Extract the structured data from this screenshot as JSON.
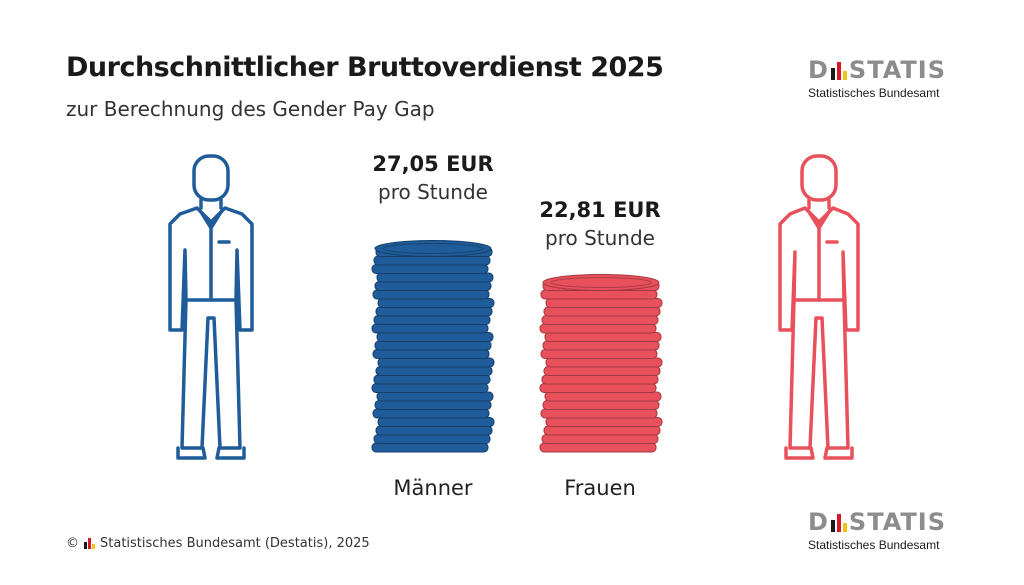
{
  "header": {
    "title": "Durchschnittlicher Bruttoverdienst 2025",
    "subtitle": "zur Berechnung des Gender Pay Gap"
  },
  "logo": {
    "word_left": "D",
    "word_right": "STATIS",
    "tagline": "Statistisches Bundesamt"
  },
  "footer": {
    "copyright": "©",
    "source": "Statistisches Bundesamt (Destatis), 2025"
  },
  "colors": {
    "men": "#1f5c99",
    "women": "#e8505b",
    "logo_grey": "#8c8c8c",
    "bar_black": "#1a1a1a",
    "bar_red": "#d7182a",
    "bar_gold": "#f0c419"
  },
  "chart_data": {
    "type": "bar",
    "title": "Durchschnittlicher Bruttoverdienst 2025",
    "subtitle": "zur Berechnung des Gender Pay Gap",
    "categories": [
      "Männer",
      "Frauen"
    ],
    "values": [
      27.05,
      22.81
    ],
    "value_labels": [
      "27,05 EUR",
      "22,81 EUR"
    ],
    "unit_label": "pro Stunde",
    "icons": [
      "man-figure-icon",
      "woman-figure-icon",
      "coin-stack-icon"
    ]
  }
}
